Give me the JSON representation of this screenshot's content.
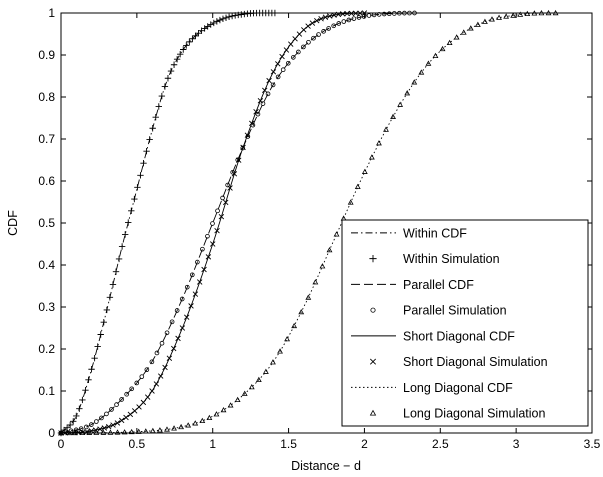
{
  "chart_data": {
    "type": "line",
    "title": "",
    "xlabel": "Distance − d",
    "ylabel": "CDF",
    "xlim": [
      0,
      3.5
    ],
    "ylim": [
      0,
      1
    ],
    "xticks": [
      "0",
      "0.5",
      "1",
      "1.5",
      "2",
      "2.5",
      "3",
      "3.5"
    ],
    "yticks": [
      "0",
      "0.1",
      "0.2",
      "0.3",
      "0.4",
      "0.5",
      "0.6",
      "0.7",
      "0.8",
      "0.9",
      "1"
    ],
    "grid": false,
    "legend_position": "bottom-right",
    "series": [
      {
        "name": "Within CDF",
        "kind": "line",
        "style": "dashdot",
        "color": "#000000",
        "x": [
          0,
          0.1,
          0.2,
          0.3,
          0.4,
          0.5,
          0.6,
          0.7,
          0.8,
          0.9,
          1.0,
          1.1,
          1.2,
          1.3,
          1.41
        ],
        "y": [
          0,
          0.04,
          0.15,
          0.29,
          0.44,
          0.58,
          0.72,
          0.84,
          0.91,
          0.95,
          0.975,
          0.99,
          0.997,
          1.0,
          1.0
        ]
      },
      {
        "name": "Within Simulation",
        "kind": "markers",
        "marker": "plus",
        "color": "#000000",
        "x": [
          0,
          0.1,
          0.2,
          0.3,
          0.4,
          0.5,
          0.6,
          0.7,
          0.8,
          0.9,
          1.0,
          1.1,
          1.2,
          1.3,
          1.41
        ],
        "y": [
          0,
          0.04,
          0.15,
          0.29,
          0.44,
          0.58,
          0.72,
          0.84,
          0.91,
          0.95,
          0.975,
          0.99,
          0.997,
          1.0,
          1.0
        ]
      },
      {
        "name": "Parallel CDF",
        "kind": "line",
        "style": "dashed",
        "color": "#000000",
        "x": [
          0,
          0.2,
          0.4,
          0.6,
          0.8,
          1.0,
          1.2,
          1.4,
          1.6,
          1.8,
          2.0,
          2.2,
          2.33
        ],
        "y": [
          0,
          0.02,
          0.08,
          0.17,
          0.32,
          0.5,
          0.68,
          0.83,
          0.92,
          0.97,
          0.992,
          0.999,
          1.0
        ]
      },
      {
        "name": "Parallel Simulation",
        "kind": "markers",
        "marker": "circle",
        "color": "#000000",
        "x": [
          0,
          0.2,
          0.4,
          0.6,
          0.8,
          1.0,
          1.2,
          1.4,
          1.6,
          1.8,
          2.0,
          2.2,
          2.33
        ],
        "y": [
          0,
          0.02,
          0.08,
          0.17,
          0.32,
          0.5,
          0.68,
          0.83,
          0.92,
          0.97,
          0.992,
          0.999,
          1.0
        ]
      },
      {
        "name": "Short Diagonal CDF",
        "kind": "line",
        "style": "solid",
        "color": "#000000",
        "x": [
          0,
          0.2,
          0.4,
          0.6,
          0.8,
          1.0,
          1.2,
          1.4,
          1.6,
          1.8,
          2.0
        ],
        "y": [
          0,
          0.005,
          0.03,
          0.1,
          0.25,
          0.45,
          0.68,
          0.86,
          0.96,
          0.995,
          1.0
        ]
      },
      {
        "name": "Short Diagonal Simulation",
        "kind": "markers",
        "marker": "x",
        "color": "#000000",
        "x": [
          0,
          0.2,
          0.4,
          0.6,
          0.8,
          1.0,
          1.2,
          1.4,
          1.6,
          1.8,
          2.0
        ],
        "y": [
          0,
          0.005,
          0.03,
          0.1,
          0.25,
          0.45,
          0.68,
          0.86,
          0.96,
          0.995,
          1.0
        ]
      },
      {
        "name": "Long Diagonal CDF",
        "kind": "line",
        "style": "dotted",
        "color": "#000000",
        "x": [
          0,
          0.5,
          0.8,
          1.0,
          1.2,
          1.4,
          1.6,
          1.8,
          2.0,
          2.2,
          2.4,
          2.6,
          2.8,
          3.0,
          3.2,
          3.26
        ],
        "y": [
          0,
          0.003,
          0.015,
          0.04,
          0.09,
          0.17,
          0.3,
          0.46,
          0.62,
          0.76,
          0.87,
          0.94,
          0.98,
          0.995,
          1.0,
          1.0
        ]
      },
      {
        "name": "Long Diagonal Simulation",
        "kind": "markers",
        "marker": "triangle",
        "color": "#000000",
        "x": [
          0,
          0.5,
          0.8,
          1.0,
          1.2,
          1.4,
          1.6,
          1.8,
          2.0,
          2.2,
          2.4,
          2.6,
          2.8,
          3.0,
          3.2,
          3.26
        ],
        "y": [
          0,
          0.003,
          0.015,
          0.04,
          0.09,
          0.17,
          0.3,
          0.46,
          0.62,
          0.76,
          0.87,
          0.94,
          0.98,
          0.995,
          1.0,
          1.0
        ]
      }
    ]
  }
}
